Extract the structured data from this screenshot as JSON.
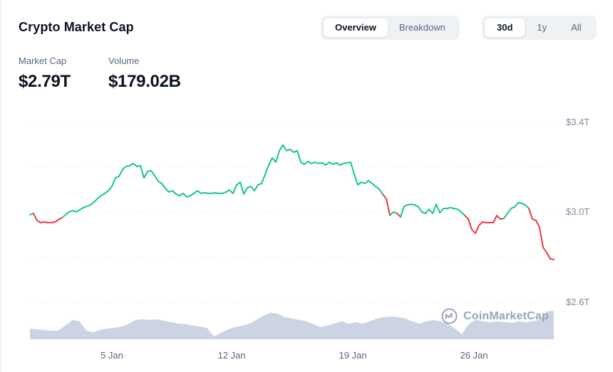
{
  "header": {
    "title": "Crypto Market Cap",
    "view_tabs": {
      "items": [
        {
          "label": "Overview",
          "active": true
        },
        {
          "label": "Breakdown",
          "active": false
        }
      ]
    },
    "range_tabs": {
      "items": [
        {
          "label": "30d",
          "active": true
        },
        {
          "label": "1y",
          "active": false
        },
        {
          "label": "All",
          "active": false
        }
      ]
    }
  },
  "stats": [
    {
      "label": "Market Cap",
      "value": "$2.79T"
    },
    {
      "label": "Volume",
      "value": "$179.02B"
    }
  ],
  "watermark": {
    "icon": "coinmarketcap-logo-icon",
    "text": "CoinMarketCap"
  },
  "colors": {
    "up_green": "#16c784",
    "down_red": "#ea3943",
    "volume_fill": "#ccd3e3",
    "grid": "#d9dde6",
    "axis_text": "#808a9d",
    "text_primary": "#0d1421",
    "text_secondary": "#58667e",
    "control_bg": "#eff2f5"
  },
  "chart_data": {
    "type": "line",
    "title": "Crypto Market Cap, 30 days (January)",
    "x_unit": "day of January",
    "day_start": 0.25,
    "day_end": 30.62,
    "x_ticks": [
      {
        "day": 5,
        "label": "5 Jan"
      },
      {
        "day": 12,
        "label": "12 Jan"
      },
      {
        "day": 19,
        "label": "19 Jan"
      },
      {
        "day": 26,
        "label": "26 Jan"
      }
    ],
    "y_axis": {
      "min": 2.6,
      "max": 3.4,
      "unit": "trillion USD",
      "gridline_values": [
        3.4,
        3.2,
        3.0,
        2.8,
        2.6
      ],
      "labeled_ticks": [
        {
          "value": 3.4,
          "label": "$3.4T"
        },
        {
          "value": 3.0,
          "label": "$3.0T"
        },
        {
          "value": 2.6,
          "label": "$2.6T"
        }
      ]
    },
    "market_cap_trillions": [
      2.989,
      2.995,
      2.964,
      2.954,
      2.957,
      2.954,
      2.954,
      2.957,
      2.967,
      2.976,
      2.989,
      3.002,
      3.008,
      3.002,
      3.011,
      3.021,
      3.027,
      3.033,
      3.046,
      3.062,
      3.074,
      3.084,
      3.096,
      3.115,
      3.153,
      3.16,
      3.191,
      3.204,
      3.207,
      3.217,
      3.204,
      3.207,
      3.153,
      3.182,
      3.185,
      3.163,
      3.138,
      3.128,
      3.106,
      3.09,
      3.096,
      3.081,
      3.074,
      3.084,
      3.068,
      3.074,
      3.084,
      3.096,
      3.084,
      3.087,
      3.084,
      3.084,
      3.087,
      3.084,
      3.084,
      3.09,
      3.099,
      3.084,
      3.122,
      3.134,
      3.081,
      3.109,
      3.115,
      3.096,
      3.122,
      3.128,
      3.169,
      3.21,
      3.242,
      3.223,
      3.274,
      3.299,
      3.274,
      3.28,
      3.267,
      3.274,
      3.223,
      3.213,
      3.226,
      3.217,
      3.223,
      3.217,
      3.22,
      3.21,
      3.223,
      3.213,
      3.22,
      3.21,
      3.217,
      3.22,
      3.223,
      3.169,
      3.122,
      3.134,
      3.128,
      3.141,
      3.128,
      3.115,
      3.103,
      3.081,
      3.059,
      2.986,
      3.002,
      2.995,
      2.979,
      3.027,
      3.033,
      3.036,
      3.033,
      3.024,
      3.002,
      2.995,
      3.014,
      2.995,
      3.036,
      2.998,
      3.017,
      3.017,
      3.021,
      3.017,
      3.014,
      3.002,
      2.986,
      2.97,
      2.923,
      2.907,
      2.942,
      2.957,
      2.954,
      2.954,
      2.954,
      2.986,
      2.97,
      2.973,
      2.995,
      3.017,
      3.024,
      3.043,
      3.04,
      3.033,
      3.017,
      2.97,
      2.964,
      2.932,
      2.843,
      2.821,
      2.793,
      2.79
    ],
    "down_segments_days": [
      [
        0.4,
        2.2
      ],
      [
        20.78,
        21.15
      ],
      [
        21.5,
        21.8
      ],
      [
        25.4,
        27.8
      ],
      [
        29.2,
        30.7
      ]
    ],
    "volume_relative": [
      0.38,
      0.35,
      0.33,
      0.3,
      0.3,
      0.48,
      0.68,
      0.63,
      0.3,
      0.25,
      0.33,
      0.38,
      0.4,
      0.45,
      0.55,
      0.68,
      0.7,
      0.68,
      0.7,
      0.65,
      0.6,
      0.55,
      0.53,
      0.48,
      0.45,
      0.4,
      0.1,
      0.23,
      0.35,
      0.43,
      0.48,
      0.55,
      0.68,
      0.83,
      0.93,
      0.9,
      0.78,
      0.73,
      0.68,
      0.63,
      0.53,
      0.43,
      0.48,
      0.55,
      0.63,
      0.55,
      0.6,
      0.55,
      0.63,
      0.73,
      0.78,
      0.8,
      0.78,
      0.73,
      0.63,
      0.55,
      0.63,
      0.68,
      0.63,
      0.55,
      0.38,
      0.18,
      0.55,
      0.68,
      0.63,
      0.6,
      0.63,
      0.6,
      0.58,
      0.63,
      0.6,
      0.63,
      0.68,
      0.98,
      1.0
    ]
  }
}
